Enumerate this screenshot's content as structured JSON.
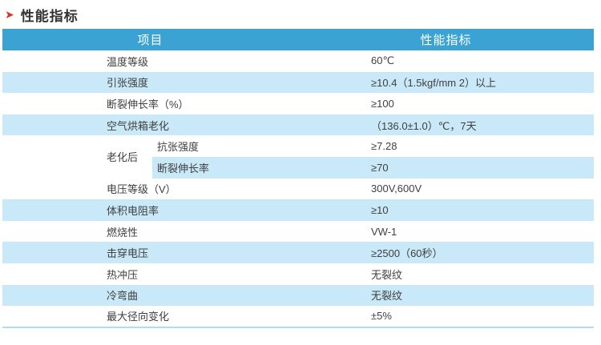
{
  "colors": {
    "header_blue": "#3BA3D3",
    "stripe_blue": "#C9E8F8",
    "border_blue": "#AEDCF2",
    "arrow_red": "#D5372B"
  },
  "title": {
    "arrow": "➤",
    "text": "性能指标"
  },
  "table": {
    "header": {
      "item": "项目",
      "spec": "性能指标"
    },
    "rows": [
      {
        "label": "温度等级",
        "value": "60℃"
      },
      {
        "label": "引张强度",
        "value": "≥10.4（1.5kgf/mm 2）以上"
      },
      {
        "label": "断裂伸长率（%）",
        "value": "≥100"
      },
      {
        "label": "空气烘箱老化",
        "value": "（136.0±1.0）℃，7天"
      },
      {
        "group": "老化后",
        "label": "抗张强度",
        "value": "≥7.28"
      },
      {
        "group": "老化后",
        "label": "断裂伸长率",
        "value": "≥70"
      },
      {
        "label": "电压等级（V）",
        "value": "300V,600V"
      },
      {
        "label": "体积电阻率",
        "value": "≥10"
      },
      {
        "label": "燃烧性",
        "value": "VW-1"
      },
      {
        "label": "击穿电压",
        "value": "≥2500（60秒）"
      },
      {
        "label": "热冲压",
        "value": "无裂纹"
      },
      {
        "label": "冷弯曲",
        "value": "无裂纹"
      },
      {
        "label": "最大径向变化",
        "value": "±5%"
      }
    ]
  }
}
